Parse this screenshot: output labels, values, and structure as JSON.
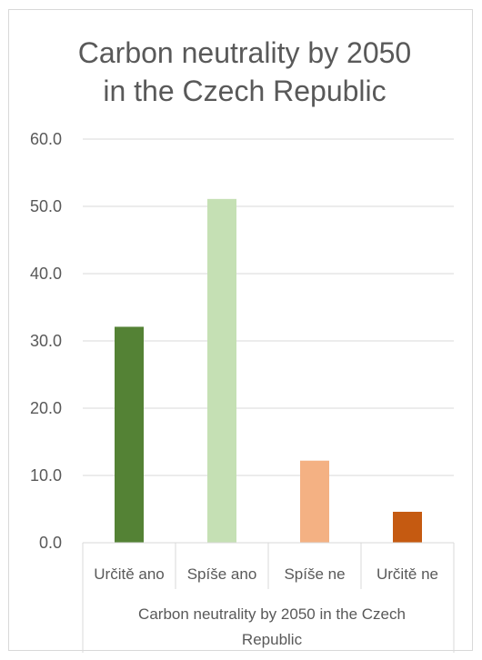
{
  "chart_data": {
    "type": "bar",
    "title_lines": [
      "Carbon neutrality by 2050",
      "in the Czech Republic"
    ],
    "categories": [
      "Určitě ano",
      "Spíše ano",
      "Spíše ne",
      "Určitě ne"
    ],
    "values": [
      32.1,
      51.1,
      12.2,
      4.6
    ],
    "colors": [
      "#548235",
      "#c5e0b4",
      "#f4b183",
      "#c55a11"
    ],
    "xlabel_lines": [
      "Carbon neutrality by 2050 in the Czech",
      "Republic"
    ],
    "ylabel": "",
    "ylim": [
      0,
      60
    ],
    "yticks": [
      "0.0",
      "10.0",
      "20.0",
      "30.0",
      "40.0",
      "50.0",
      "60.0"
    ],
    "grid": true,
    "legend": "none"
  }
}
